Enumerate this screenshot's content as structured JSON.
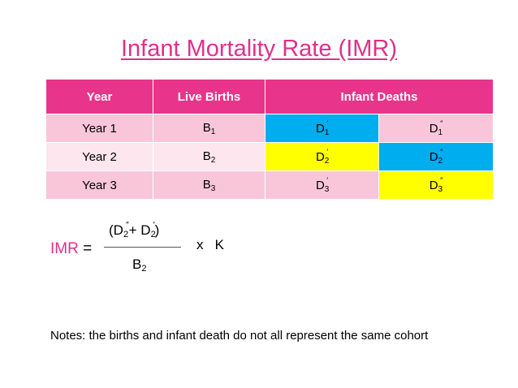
{
  "title": "Infant Mortality Rate (IMR)",
  "table": {
    "headers": {
      "year": "Year",
      "live_births": "Live Births",
      "infant_deaths": "Infant Deaths"
    },
    "rows": [
      {
        "year": "Year 1",
        "births_base": "B",
        "births_sub": "1",
        "d_prime_base": "D",
        "d_prime_sub": "1",
        "d_prime_mark": "′",
        "d_dprime_base": "D",
        "d_dprime_sub": "1",
        "d_dprime_mark": "″"
      },
      {
        "year": "Year 2",
        "births_base": "B",
        "births_sub": "2",
        "d_prime_base": "D",
        "d_prime_sub": "2",
        "d_prime_mark": "′",
        "d_dprime_base": "D",
        "d_dprime_sub": "2",
        "d_dprime_mark": "″"
      },
      {
        "year": "Year 3",
        "births_base": "B",
        "births_sub": "3",
        "d_prime_base": "D",
        "d_prime_sub": "3",
        "d_prime_mark": "′",
        "d_dprime_base": "D",
        "d_dprime_sub": "3",
        "d_dprime_mark": "″"
      }
    ],
    "highlight_colors": {
      "blue": "#00aeef",
      "yellow": "#ffff00",
      "header": "#e8348a",
      "row_pink": "#f9c6d9",
      "row_light": "#fde6ee"
    }
  },
  "formula": {
    "lhs_acronym": "IMR",
    "equals": "=",
    "num_open": "(D",
    "num_sub1": "2",
    "num_mark1": "″",
    "num_plus": "+ D",
    "num_sub2": "2",
    "num_mark2": "′",
    "num_close": ")",
    "den_base": "B",
    "den_sub": "2",
    "multiplier": "x   K"
  },
  "notes": "Notes: the births and infant death do not all represent the same cohort"
}
